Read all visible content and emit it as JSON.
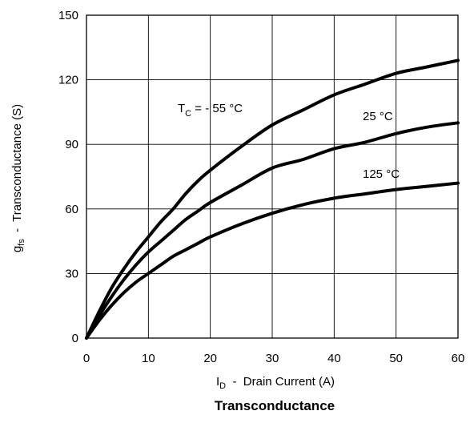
{
  "chart_data": {
    "type": "line",
    "title": "Transconductance",
    "xlabel": {
      "main": "I",
      "sub": "D",
      "rest": "  -  Drain Current (A)"
    },
    "ylabel": {
      "main": "g",
      "sub": "fs",
      "rest": "  -  Transconductance (S)"
    },
    "xlim": [
      0,
      60
    ],
    "ylim": [
      0,
      150
    ],
    "x_ticks": [
      "0",
      "10",
      "20",
      "30",
      "40",
      "50",
      "60"
    ],
    "y_ticks": [
      "0",
      "30",
      "60",
      "90",
      "120",
      "150"
    ],
    "grid": true,
    "series": [
      {
        "name": "TC = - 55 °C",
        "label_parts": {
          "main": "T",
          "sub": "C",
          "rest": " = - 55 °C"
        },
        "x": [
          0,
          2,
          4,
          6,
          8,
          10,
          12,
          14,
          16,
          18,
          20,
          25,
          30,
          35,
          40,
          45,
          50,
          55,
          60
        ],
        "y": [
          0,
          12,
          23,
          32,
          40,
          47,
          54,
          60,
          67,
          73,
          78,
          89,
          99,
          106,
          113,
          118,
          123,
          126,
          129
        ]
      },
      {
        "name": "25 °C",
        "label_parts": {
          "main": "25 °C",
          "sub": "",
          "rest": ""
        },
        "x": [
          0,
          2,
          4,
          6,
          8,
          10,
          12,
          14,
          16,
          18,
          20,
          25,
          30,
          35,
          40,
          45,
          50,
          55,
          60
        ],
        "y": [
          0,
          10,
          19,
          27,
          34,
          40,
          45,
          50,
          55,
          59,
          63,
          71,
          79,
          83,
          88,
          91,
          95,
          98,
          100
        ]
      },
      {
        "name": "125 °C",
        "label_parts": {
          "main": "125 °C",
          "sub": "",
          "rest": ""
        },
        "x": [
          0,
          2,
          4,
          6,
          8,
          10,
          12,
          14,
          16,
          18,
          20,
          25,
          30,
          35,
          40,
          45,
          50,
          55,
          60
        ],
        "y": [
          0,
          8,
          15,
          21,
          26,
          30,
          34,
          38,
          41,
          44,
          47,
          53,
          58,
          62,
          65,
          67,
          69,
          70.5,
          72
        ]
      }
    ]
  }
}
